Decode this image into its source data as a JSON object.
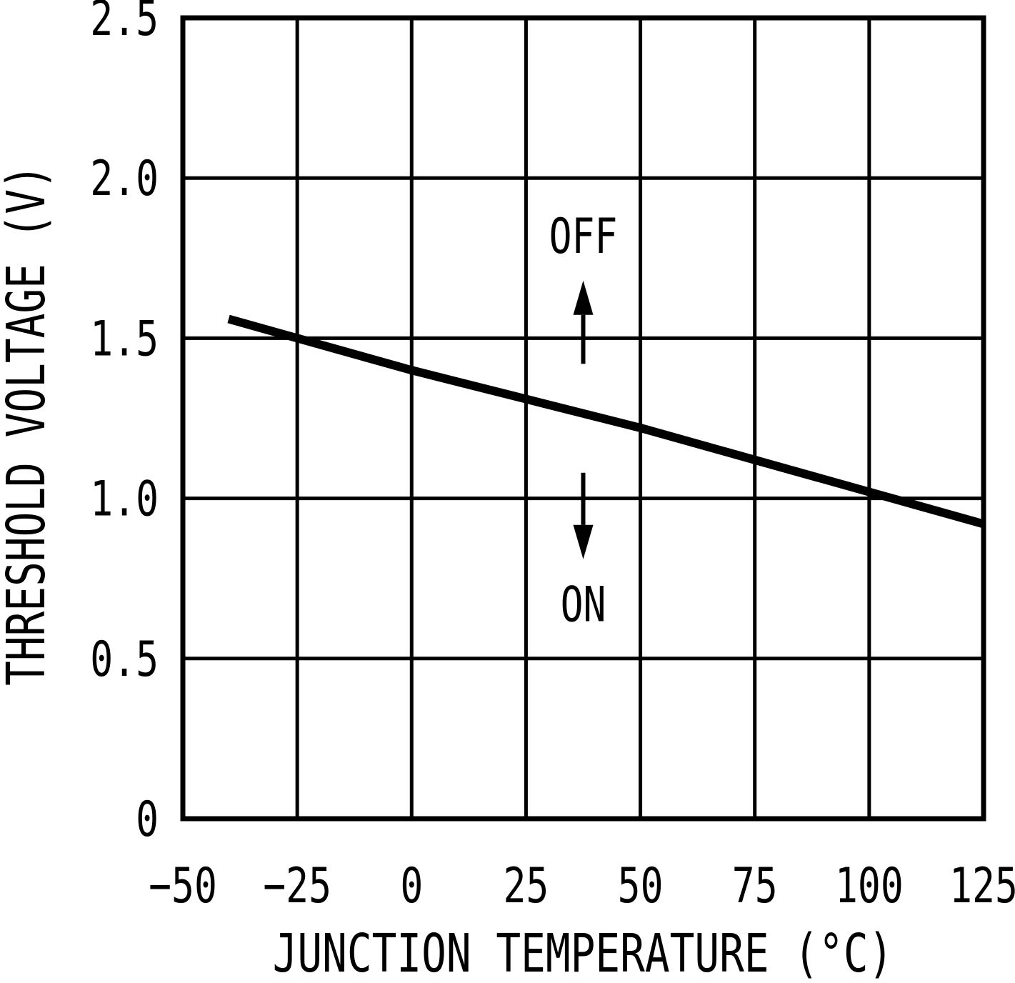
{
  "figure": {
    "background_color": "#ffffff",
    "ink_color": "#000000"
  },
  "chart_data": {
    "type": "line",
    "title": "",
    "xlabel": "JUNCTION TEMPERATURE (°C)",
    "ylabel": "THRESHOLD VOLTAGE (V)",
    "xlim": [
      -50,
      125
    ],
    "ylim": [
      0,
      2.5
    ],
    "grid": "on",
    "legend": "none",
    "x_ticks": {
      "values": [
        -50,
        -25,
        0,
        25,
        50,
        75,
        100,
        125
      ],
      "labels": [
        "−50",
        "−25",
        "0",
        "25",
        "50",
        "75",
        "100",
        "125"
      ]
    },
    "y_ticks": {
      "values": [
        0,
        0.5,
        1.0,
        1.5,
        2.0,
        2.5
      ],
      "labels": [
        "0",
        "0.5",
        "1.0",
        "1.5",
        "2.0",
        "2.5"
      ]
    },
    "series": [
      {
        "name": "threshold-voltage",
        "x": [
          -40,
          -25,
          0,
          25,
          50,
          75,
          100,
          125
        ],
        "values": [
          1.56,
          1.5,
          1.4,
          1.31,
          1.22,
          1.12,
          1.02,
          0.92
        ]
      }
    ],
    "annotations": [
      {
        "text": "OFF",
        "x": 37.5,
        "y": 1.82,
        "arrow": {
          "direction": "up",
          "x": 37.5,
          "y_start": 1.42,
          "y_end": 1.68
        }
      },
      {
        "text": "ON",
        "x": 37.5,
        "y": 0.67,
        "arrow": {
          "direction": "down",
          "x": 37.5,
          "y_start": 1.08,
          "y_end": 0.81
        }
      }
    ]
  }
}
